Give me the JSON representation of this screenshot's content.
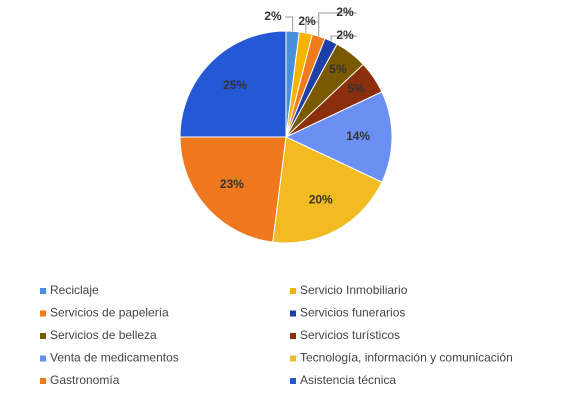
{
  "chart_data": {
    "type": "pie",
    "categories": [
      "Reciclaje",
      "Servicio Inmobiliario",
      "Servicios de papelería",
      "Servicios funerarios",
      "Servicios de belleza",
      "Servicios turísticos",
      "Venta de medicamentos",
      "Tecnología, información y comunicación",
      "Gastronomía",
      "Asistencia técnica"
    ],
    "values": [
      2,
      2,
      2,
      2,
      5,
      5,
      14,
      20,
      23,
      25
    ],
    "value_labels": [
      "2%",
      "2%",
      "2%",
      "2%",
      "5%",
      "5%",
      "14%",
      "20%",
      "23%",
      "25%"
    ],
    "colors": [
      "#4a8fdc",
      "#f5b400",
      "#f07a1e",
      "#1f3fa8",
      "#7a5a00",
      "#8b2e0c",
      "#6b8ff2",
      "#f2bb22",
      "#f0791f",
      "#2458d4"
    ]
  }
}
